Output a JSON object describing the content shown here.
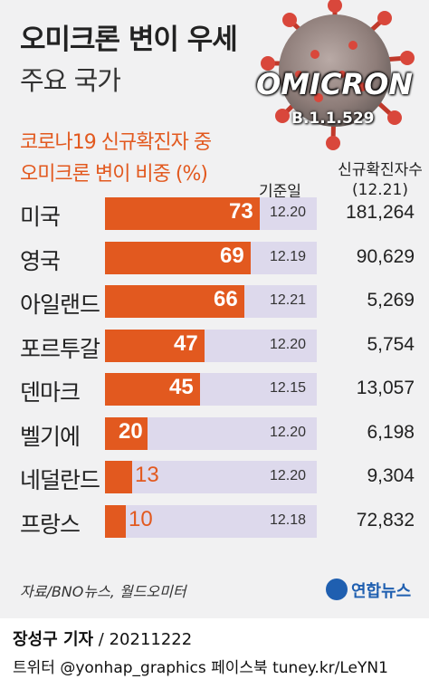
{
  "header": {
    "title": "오미크론 변이 우세",
    "subtitle": "주요 국가",
    "badge_word": "OMICRON",
    "badge_variant": "B.1.1.529"
  },
  "chart_head": {
    "line1": "코로나19 신규확진자 중",
    "line2": "오미크론 변이 비중 (%)",
    "date_header": "기준일",
    "cases_header_line1": "신규확진자수",
    "cases_header_line2": "(12.21)"
  },
  "chart_data": {
    "type": "bar",
    "orientation": "horizontal",
    "title": "코로나19 신규확진자 중 오미크론 변이 비중 (%)",
    "categories": [
      "미국",
      "영국",
      "아일랜드",
      "포르투갈",
      "덴마크",
      "벨기에",
      "네덜란드",
      "프랑스"
    ],
    "values": [
      73,
      69,
      66,
      47,
      45,
      20,
      13,
      10
    ],
    "value_labels": [
      "73",
      "69",
      "66",
      "47",
      "45",
      "20",
      "13",
      "10"
    ],
    "reference_dates": [
      "12.20",
      "12.19",
      "12.21",
      "12.20",
      "12.15",
      "12.20",
      "12.20",
      "12.18"
    ],
    "new_cases": [
      "181,264",
      "90,629",
      "5,269",
      "5,754",
      "13,057",
      "6,198",
      "9,304",
      "72,832"
    ],
    "xlim": [
      0,
      100
    ],
    "colors": {
      "bar": "#e2591f",
      "track": "#ddd9ec"
    }
  },
  "footer": {
    "source": "자료/BNO뉴스, 월드오미터",
    "logo_text": "연합뉴스",
    "reporter_name": "장성구 기자",
    "reporter_date": " / 20211222",
    "social": "트위터 @yonhap_graphics  페이스북 tuney.kr/LeYN1"
  }
}
